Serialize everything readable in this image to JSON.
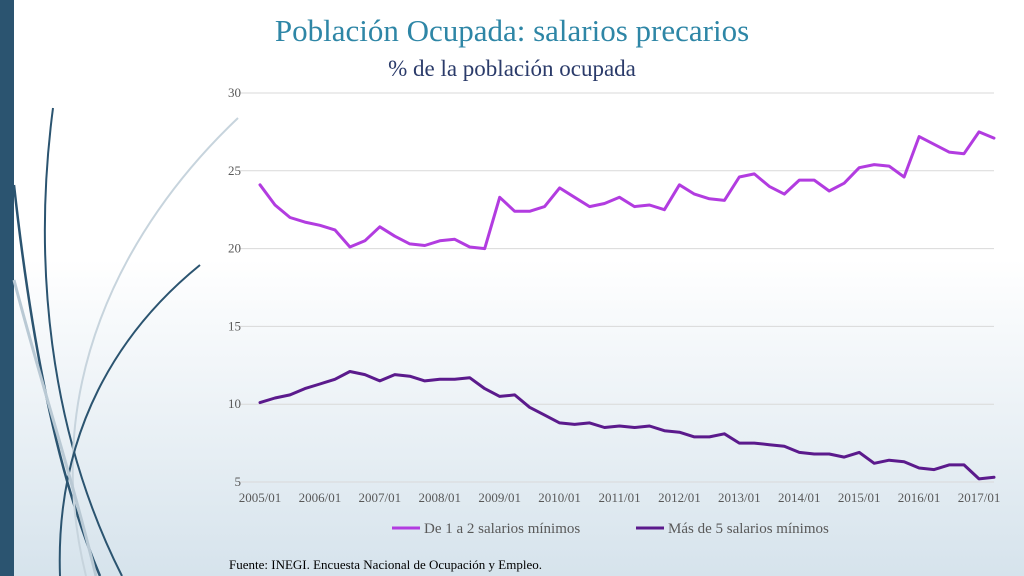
{
  "title": "Población Ocupada: salarios precarios",
  "subtitle": "% de la población ocupada",
  "footnote": "Fuente: INEGI. Encuesta Nacional de Ocupación y Empleo.",
  "colors": {
    "left_bar": "#2b5470",
    "title": "#2e86a6",
    "subtitle": "#2b3b6a",
    "series_1": "#b23ce0",
    "series_2": "#5b1a8c"
  },
  "chart_data": {
    "type": "line",
    "ylim": [
      5,
      30
    ],
    "yticks": [
      "5",
      "10",
      "15",
      "20",
      "25",
      "30"
    ],
    "xticks": [
      "2005/01",
      "2006/01",
      "2007/01",
      "2008/01",
      "2009/01",
      "2010/01",
      "2011/01",
      "2012/01",
      "2013/01",
      "2014/01",
      "2015/01",
      "2016/01",
      "2017/01"
    ],
    "grid": true,
    "legend_position": "bottom",
    "series": [
      {
        "name": "De 1 a 2 salarios mínimos",
        "values": [
          24.1,
          22.8,
          22.0,
          21.7,
          21.5,
          21.2,
          20.1,
          20.5,
          21.4,
          20.8,
          20.3,
          20.2,
          20.5,
          20.6,
          20.1,
          20.0,
          23.3,
          22.4,
          22.4,
          22.7,
          23.9,
          23.3,
          22.7,
          22.9,
          23.3,
          22.7,
          22.8,
          22.5,
          24.1,
          23.5,
          23.2,
          23.1,
          24.6,
          24.8,
          24.0,
          23.5,
          24.4,
          24.4,
          23.7,
          24.2,
          25.2,
          25.4,
          25.3,
          24.6,
          27.2,
          26.7,
          26.2,
          26.1,
          27.5,
          27.1
        ]
      },
      {
        "name": "Más de 5 salarios mínimos",
        "values": [
          10.1,
          10.4,
          10.6,
          11.0,
          11.3,
          11.6,
          12.1,
          11.9,
          11.5,
          11.9,
          11.8,
          11.5,
          11.6,
          11.6,
          11.7,
          11.0,
          10.5,
          10.6,
          9.8,
          9.3,
          8.8,
          8.7,
          8.8,
          8.5,
          8.6,
          8.5,
          8.6,
          8.3,
          8.2,
          7.9,
          7.9,
          8.1,
          7.5,
          7.5,
          7.4,
          7.3,
          6.9,
          6.8,
          6.8,
          6.6,
          6.9,
          6.2,
          6.4,
          6.3,
          5.9,
          5.8,
          6.1,
          6.1,
          5.2,
          5.3
        ]
      }
    ]
  }
}
